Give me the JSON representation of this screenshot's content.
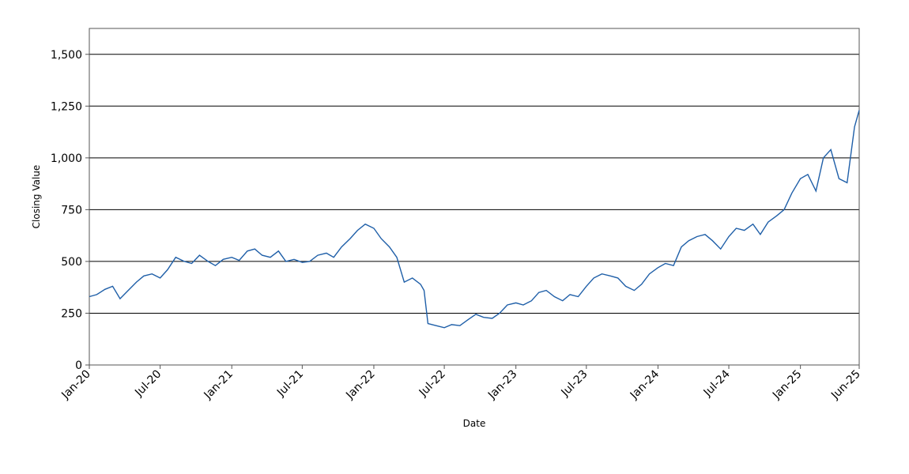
{
  "chart_data": {
    "type": "line",
    "title": "",
    "xlabel": "Date",
    "ylabel": "Closing Value",
    "ylim": [
      0,
      1625
    ],
    "xlim": [
      "2020-01-01",
      "2025-06-01"
    ],
    "grid": "horizontal",
    "legend": "none",
    "y_ticks": [
      0,
      250,
      500,
      750,
      1000,
      1250,
      1500
    ],
    "y_tick_labels": [
      "0",
      "250",
      "500",
      "750",
      "1,000",
      "1,250",
      "1,500"
    ],
    "x_ticks": [
      "2020-01-01",
      "2020-07-01",
      "2021-01-01",
      "2021-07-01",
      "2022-01-01",
      "2022-07-01",
      "2023-01-01",
      "2023-07-01",
      "2024-01-01",
      "2024-07-01",
      "2025-01-01",
      "2025-06-01"
    ],
    "x_tick_labels": [
      "Jan-20",
      "Jul-20",
      "Jan-21",
      "Jul-21",
      "Jan-22",
      "Jul-22",
      "Jan-23",
      "Jul-23",
      "Jan-24",
      "Jul-24",
      "Jan-25",
      "Jun-25"
    ],
    "series": [
      {
        "color": "#1f5fa8",
        "x": [
          "2020-01-01",
          "2020-01-20",
          "2020-02-10",
          "2020-03-01",
          "2020-03-20",
          "2020-04-10",
          "2020-05-01",
          "2020-05-20",
          "2020-06-10",
          "2020-07-01",
          "2020-07-20",
          "2020-08-10",
          "2020-09-01",
          "2020-09-20",
          "2020-10-10",
          "2020-11-01",
          "2020-11-20",
          "2020-12-10",
          "2021-01-01",
          "2021-01-20",
          "2021-02-10",
          "2021-03-01",
          "2021-03-20",
          "2021-04-10",
          "2021-05-01",
          "2021-05-20",
          "2021-06-10",
          "2021-07-01",
          "2021-07-20",
          "2021-08-10",
          "2021-09-01",
          "2021-09-20",
          "2021-10-10",
          "2021-11-01",
          "2021-11-20",
          "2021-12-10",
          "2022-01-01",
          "2022-01-20",
          "2022-02-10",
          "2022-03-01",
          "2022-03-20",
          "2022-04-10",
          "2022-05-01",
          "2022-05-10",
          "2022-05-20",
          "2022-06-10",
          "2022-07-01",
          "2022-07-20",
          "2022-08-10",
          "2022-09-01",
          "2022-09-20",
          "2022-10-10",
          "2022-11-01",
          "2022-11-20",
          "2022-12-10",
          "2023-01-01",
          "2023-01-20",
          "2023-02-10",
          "2023-03-01",
          "2023-03-20",
          "2023-04-10",
          "2023-05-01",
          "2023-05-20",
          "2023-06-10",
          "2023-07-01",
          "2023-07-20",
          "2023-08-10",
          "2023-09-01",
          "2023-09-20",
          "2023-10-10",
          "2023-11-01",
          "2023-11-20",
          "2023-12-10",
          "2024-01-01",
          "2024-01-20",
          "2024-02-10",
          "2024-03-01",
          "2024-03-20",
          "2024-04-10",
          "2024-05-01",
          "2024-05-20",
          "2024-06-10",
          "2024-07-01",
          "2024-07-20",
          "2024-08-10",
          "2024-09-01",
          "2024-09-20",
          "2024-10-10",
          "2024-11-01",
          "2024-11-20",
          "2024-12-10",
          "2025-01-01",
          "2025-01-20",
          "2025-02-10",
          "2025-03-01",
          "2025-03-20",
          "2025-04-10",
          "2025-05-01",
          "2025-05-20",
          "2025-06-01"
        ],
        "y": [
          330,
          340,
          365,
          380,
          320,
          360,
          400,
          430,
          440,
          420,
          460,
          520,
          500,
          490,
          530,
          500,
          480,
          510,
          520,
          505,
          550,
          560,
          530,
          520,
          550,
          500,
          510,
          495,
          500,
          530,
          540,
          520,
          570,
          610,
          650,
          680,
          660,
          610,
          570,
          520,
          400,
          420,
          390,
          360,
          200,
          190,
          180,
          195,
          190,
          220,
          245,
          230,
          225,
          250,
          290,
          300,
          290,
          310,
          350,
          360,
          330,
          310,
          340,
          330,
          380,
          420,
          440,
          430,
          420,
          380,
          360,
          390,
          440,
          470,
          490,
          480,
          570,
          600,
          620,
          630,
          600,
          560,
          620,
          660,
          650,
          680,
          630,
          690,
          720,
          750,
          830,
          900,
          920,
          840,
          1000,
          1040,
          900,
          880,
          1150,
          1230
        ]
      }
    ]
  }
}
